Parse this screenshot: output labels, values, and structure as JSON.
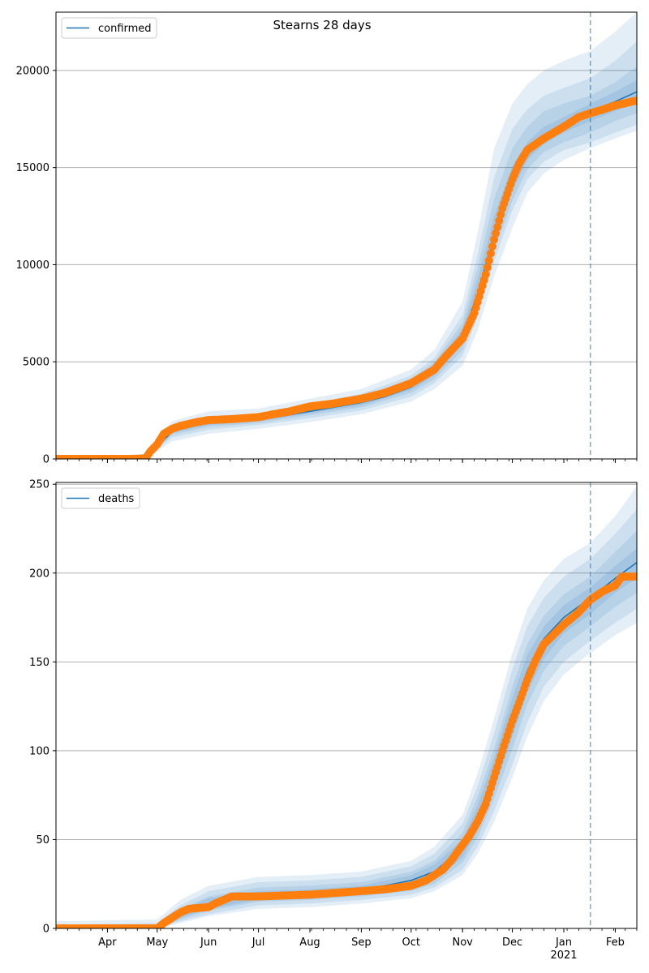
{
  "title": "Stearns 28 days",
  "colors": {
    "model_line": "#1f77b4",
    "observed": "#ff7f0e",
    "band": "#1f77b4",
    "grid": "#b0b0b0",
    "forecast_start": "#1f77b4"
  },
  "x_axis": {
    "range": [
      "2020-03-01",
      "2021-02-14"
    ],
    "month_labels": [
      {
        "date": "2020-04-01",
        "label": "Apr"
      },
      {
        "date": "2020-05-01",
        "label": "May"
      },
      {
        "date": "2020-06-01",
        "label": "Jun"
      },
      {
        "date": "2020-07-01",
        "label": "Jul"
      },
      {
        "date": "2020-08-01",
        "label": "Aug"
      },
      {
        "date": "2020-09-01",
        "label": "Sep"
      },
      {
        "date": "2020-10-01",
        "label": "Oct"
      },
      {
        "date": "2020-11-01",
        "label": "Nov"
      },
      {
        "date": "2020-12-01",
        "label": "Dec"
      },
      {
        "date": "2021-01-01",
        "label": "Jan"
      },
      {
        "date": "2021-02-01",
        "label": "Feb"
      }
    ],
    "year_label": {
      "date": "2021-01-01",
      "label": "2021"
    },
    "forecast_start": "2021-01-17"
  },
  "chart_data": [
    {
      "type": "line",
      "legend": "confirmed",
      "legend_position": "top-left",
      "grid": "horizontal",
      "ylim": [
        0,
        23000
      ],
      "yticks": [
        0,
        5000,
        10000,
        15000,
        20000
      ],
      "ytick_labels": [
        "0",
        "5000",
        "10000",
        "15000",
        "20000"
      ],
      "observed": [
        [
          "2020-03-01",
          0
        ],
        [
          "2020-04-15",
          0
        ],
        [
          "2020-04-24",
          30
        ],
        [
          "2020-04-27",
          400
        ],
        [
          "2020-05-01",
          750
        ],
        [
          "2020-05-05",
          1300
        ],
        [
          "2020-05-10",
          1550
        ],
        [
          "2020-05-15",
          1700
        ],
        [
          "2020-05-20",
          1800
        ],
        [
          "2020-05-25",
          1900
        ],
        [
          "2020-06-01",
          2000
        ],
        [
          "2020-06-15",
          2050
        ],
        [
          "2020-07-01",
          2150
        ],
        [
          "2020-07-10",
          2300
        ],
        [
          "2020-07-20",
          2450
        ],
        [
          "2020-08-01",
          2700
        ],
        [
          "2020-08-15",
          2850
        ],
        [
          "2020-09-01",
          3100
        ],
        [
          "2020-09-15",
          3400
        ],
        [
          "2020-10-01",
          3900
        ],
        [
          "2020-10-15",
          4600
        ],
        [
          "2020-10-22",
          5300
        ],
        [
          "2020-11-01",
          6200
        ],
        [
          "2020-11-08",
          7500
        ],
        [
          "2020-11-15",
          9500
        ],
        [
          "2020-11-20",
          11300
        ],
        [
          "2020-11-25",
          12900
        ],
        [
          "2020-12-01",
          14400
        ],
        [
          "2020-12-05",
          15200
        ],
        [
          "2020-12-10",
          15900
        ],
        [
          "2020-12-20",
          16500
        ],
        [
          "2021-01-01",
          17100
        ],
        [
          "2021-01-10",
          17600
        ],
        [
          "2021-01-17",
          17800
        ],
        [
          "2021-01-25",
          18000
        ],
        [
          "2021-02-01",
          18200
        ],
        [
          "2021-02-14",
          18450
        ]
      ],
      "model": [
        [
          "2020-03-01",
          0
        ],
        [
          "2020-04-24",
          30
        ],
        [
          "2020-05-01",
          650
        ],
        [
          "2020-05-10",
          1400
        ],
        [
          "2020-05-20",
          1700
        ],
        [
          "2020-06-01",
          1850
        ],
        [
          "2020-06-15",
          1950
        ],
        [
          "2020-07-01",
          2050
        ],
        [
          "2020-07-15",
          2200
        ],
        [
          "2020-08-01",
          2450
        ],
        [
          "2020-08-15",
          2650
        ],
        [
          "2020-09-01",
          2900
        ],
        [
          "2020-09-15",
          3200
        ],
        [
          "2020-10-01",
          3700
        ],
        [
          "2020-10-15",
          4500
        ],
        [
          "2020-11-01",
          6300
        ],
        [
          "2020-11-10",
          8500
        ],
        [
          "2020-11-20",
          11500
        ],
        [
          "2020-12-01",
          14300
        ],
        [
          "2020-12-10",
          15800
        ],
        [
          "2020-12-20",
          16600
        ],
        [
          "2021-01-01",
          17200
        ],
        [
          "2021-01-17",
          17900
        ],
        [
          "2021-02-01",
          18400
        ],
        [
          "2021-02-14",
          18900
        ]
      ],
      "bands": [
        {
          "dates": [
            "2020-03-01",
            "2020-04-24",
            "2020-05-10",
            "2020-06-01",
            "2020-07-01",
            "2020-08-01",
            "2020-09-01",
            "2020-10-01",
            "2020-10-15",
            "2020-11-01",
            "2020-11-10",
            "2020-11-20",
            "2020-12-01",
            "2020-12-10",
            "2020-12-20",
            "2021-01-01",
            "2021-01-17",
            "2021-02-01",
            "2021-02-14"
          ],
          "lower": [
            0,
            0,
            1100,
            1500,
            1750,
            2100,
            2500,
            3200,
            3900,
            5300,
            7300,
            10200,
            12800,
            14400,
            15300,
            15900,
            16300,
            16800,
            17200
          ],
          "upper": [
            0,
            60,
            1750,
            2200,
            2350,
            2850,
            3350,
            4300,
            5200,
            7400,
            10500,
            14500,
            17000,
            18000,
            18700,
            19100,
            19600,
            20500,
            21500
          ]
        },
        {
          "dates": [
            "2020-03-01",
            "2020-04-24",
            "2020-05-10",
            "2020-06-01",
            "2020-07-01",
            "2020-08-01",
            "2020-09-01",
            "2020-10-01",
            "2020-10-15",
            "2020-11-01",
            "2020-11-10",
            "2020-11-20",
            "2020-12-01",
            "2020-12-10",
            "2020-12-20",
            "2021-01-01",
            "2021-01-17",
            "2021-02-01",
            "2021-02-14"
          ],
          "lower": [
            0,
            0,
            900,
            1300,
            1550,
            1900,
            2300,
            2950,
            3600,
            4800,
            6600,
            9400,
            11900,
            13700,
            14700,
            15400,
            16000,
            16500,
            16900
          ],
          "upper": [
            0,
            90,
            1950,
            2450,
            2600,
            3100,
            3600,
            4600,
            5600,
            8100,
            11600,
            16000,
            18300,
            19300,
            20000,
            20500,
            21000,
            22000,
            23000
          ]
        },
        {
          "dates": [
            "2020-03-01",
            "2020-04-24",
            "2020-05-10",
            "2020-06-01",
            "2020-07-01",
            "2020-08-01",
            "2020-09-01",
            "2020-10-01",
            "2020-10-15",
            "2020-11-01",
            "2020-11-10",
            "2020-11-20",
            "2020-12-01",
            "2020-12-10",
            "2020-12-20",
            "2021-01-01",
            "2021-01-17",
            "2021-02-01",
            "2021-02-14"
          ],
          "lower": [
            0,
            0,
            1250,
            1650,
            1850,
            2250,
            2650,
            3400,
            4100,
            5600,
            7800,
            10700,
            13300,
            14900,
            15800,
            16300,
            16800,
            17400,
            17800
          ],
          "upper": [
            0,
            50,
            1600,
            2050,
            2250,
            2700,
            3200,
            4100,
            5000,
            7000,
            9800,
            13400,
            16000,
            17100,
            17900,
            18300,
            18700,
            19400,
            20200
          ]
        },
        {
          "dates": [
            "2020-03-01",
            "2020-04-24",
            "2020-05-10",
            "2020-06-01",
            "2020-07-01",
            "2020-08-01",
            "2020-09-01",
            "2020-10-01",
            "2020-10-15",
            "2020-11-01",
            "2020-11-10",
            "2020-11-20",
            "2020-12-01",
            "2020-12-10",
            "2020-12-20",
            "2021-01-01",
            "2021-01-17",
            "2021-02-01",
            "2021-02-14"
          ],
          "lower": [
            0,
            0,
            1350,
            1750,
            1950,
            2350,
            2750,
            3550,
            4300,
            5900,
            8200,
            11100,
            13800,
            15400,
            16200,
            16800,
            17400,
            17900,
            18300
          ],
          "upper": [
            0,
            40,
            1500,
            1950,
            2150,
            2600,
            3050,
            3900,
            4800,
            6700,
            9200,
            12500,
            15100,
            16300,
            17100,
            17600,
            18300,
            18900,
            19500
          ]
        }
      ]
    },
    {
      "type": "line",
      "legend": "deaths",
      "legend_position": "top-left",
      "grid": "horizontal",
      "ylim": [
        0,
        251
      ],
      "yticks": [
        0,
        50,
        100,
        150,
        200,
        250
      ],
      "ytick_labels": [
        "0",
        "50",
        "100",
        "150",
        "200",
        "250"
      ],
      "observed": [
        [
          "2020-03-01",
          0
        ],
        [
          "2020-05-01",
          0
        ],
        [
          "2020-05-05",
          3
        ],
        [
          "2020-05-10",
          6
        ],
        [
          "2020-05-15",
          9
        ],
        [
          "2020-05-20",
          11
        ],
        [
          "2020-06-01",
          12
        ],
        [
          "2020-06-05",
          14
        ],
        [
          "2020-06-10",
          16
        ],
        [
          "2020-06-15",
          18
        ],
        [
          "2020-07-01",
          18
        ],
        [
          "2020-08-01",
          19
        ],
        [
          "2020-09-01",
          21
        ],
        [
          "2020-09-15",
          22
        ],
        [
          "2020-10-01",
          24
        ],
        [
          "2020-10-10",
          27
        ],
        [
          "2020-10-20",
          33
        ],
        [
          "2020-10-25",
          38
        ],
        [
          "2020-11-01",
          47
        ],
        [
          "2020-11-05",
          52
        ],
        [
          "2020-11-10",
          60
        ],
        [
          "2020-11-15",
          70
        ],
        [
          "2020-11-20",
          85
        ],
        [
          "2020-11-25",
          100
        ],
        [
          "2020-12-01",
          117
        ],
        [
          "2020-12-05",
          127
        ],
        [
          "2020-12-10",
          140
        ],
        [
          "2020-12-15",
          151
        ],
        [
          "2020-12-20",
          160
        ],
        [
          "2021-01-01",
          171
        ],
        [
          "2021-01-10",
          178
        ],
        [
          "2021-01-17",
          185
        ],
        [
          "2021-01-25",
          190
        ],
        [
          "2021-02-01",
          193
        ],
        [
          "2021-02-05",
          198
        ],
        [
          "2021-02-14",
          198
        ]
      ],
      "model": [
        [
          "2020-03-01",
          0
        ],
        [
          "2020-05-01",
          0
        ],
        [
          "2020-05-15",
          8
        ],
        [
          "2020-06-01",
          14
        ],
        [
          "2020-06-15",
          18
        ],
        [
          "2020-07-01",
          19
        ],
        [
          "2020-08-01",
          20
        ],
        [
          "2020-09-01",
          22
        ],
        [
          "2020-09-15",
          24
        ],
        [
          "2020-10-01",
          27
        ],
        [
          "2020-10-15",
          32
        ],
        [
          "2020-11-01",
          45
        ],
        [
          "2020-11-10",
          62
        ],
        [
          "2020-11-20",
          88
        ],
        [
          "2020-12-01",
          120
        ],
        [
          "2020-12-10",
          145
        ],
        [
          "2020-12-20",
          163
        ],
        [
          "2021-01-01",
          175
        ],
        [
          "2021-01-17",
          186
        ],
        [
          "2021-02-01",
          197
        ],
        [
          "2021-02-14",
          206
        ]
      ],
      "bands": [
        {
          "dates": [
            "2020-03-01",
            "2020-05-01",
            "2020-05-15",
            "2020-06-01",
            "2020-07-01",
            "2020-08-01",
            "2020-09-01",
            "2020-10-01",
            "2020-10-15",
            "2020-11-01",
            "2020-11-10",
            "2020-11-20",
            "2020-12-01",
            "2020-12-10",
            "2020-12-20",
            "2021-01-01",
            "2021-01-17",
            "2021-02-01",
            "2021-02-14"
          ],
          "lower": [
            0,
            0,
            4,
            8,
            13,
            14,
            16,
            19,
            23,
            33,
            46,
            66,
            92,
            116,
            136,
            150,
            162,
            172,
            180
          ],
          "upper": [
            2,
            3,
            13,
            21,
            26,
            27,
            29,
            35,
            42,
            59,
            80,
            110,
            146,
            170,
            186,
            198,
            208,
            222,
            236
          ]
        },
        {
          "dates": [
            "2020-03-01",
            "2020-05-01",
            "2020-05-15",
            "2020-06-01",
            "2020-07-01",
            "2020-08-01",
            "2020-09-01",
            "2020-10-01",
            "2020-10-15",
            "2020-11-01",
            "2020-11-10",
            "2020-11-20",
            "2020-12-01",
            "2020-12-10",
            "2020-12-20",
            "2021-01-01",
            "2021-01-17",
            "2021-02-01",
            "2021-02-14"
          ],
          "lower": [
            0,
            0,
            3,
            7,
            11,
            12,
            14,
            17,
            21,
            30,
            42,
            60,
            85,
            108,
            128,
            143,
            155,
            165,
            172
          ],
          "upper": [
            4,
            5,
            16,
            24,
            29,
            30,
            32,
            38,
            46,
            64,
            87,
            118,
            155,
            180,
            196,
            208,
            217,
            232,
            249
          ]
        },
        {
          "dates": [
            "2020-03-01",
            "2020-05-01",
            "2020-05-15",
            "2020-06-01",
            "2020-07-01",
            "2020-08-01",
            "2020-09-01",
            "2020-10-01",
            "2020-10-15",
            "2020-11-01",
            "2020-11-10",
            "2020-11-20",
            "2020-12-01",
            "2020-12-10",
            "2020-12-20",
            "2021-01-01",
            "2021-01-17",
            "2021-02-01",
            "2021-02-14"
          ],
          "lower": [
            0,
            0,
            5,
            10,
            15,
            16,
            18,
            21,
            25,
            37,
            51,
            73,
            101,
            126,
            145,
            159,
            170,
            181,
            189
          ],
          "upper": [
            1,
            2,
            11,
            18,
            23,
            24,
            26,
            32,
            38,
            54,
            74,
            101,
            136,
            160,
            176,
            188,
            198,
            212,
            224
          ]
        },
        {
          "dates": [
            "2020-03-01",
            "2020-05-01",
            "2020-05-15",
            "2020-06-01",
            "2020-07-01",
            "2020-08-01",
            "2020-09-01",
            "2020-10-01",
            "2020-10-15",
            "2020-11-01",
            "2020-11-10",
            "2020-11-20",
            "2020-12-01",
            "2020-12-10",
            "2020-12-20",
            "2021-01-01",
            "2021-01-17",
            "2021-02-01",
            "2021-02-14"
          ],
          "lower": [
            0,
            0,
            6,
            11,
            16,
            17,
            19,
            23,
            27,
            40,
            55,
            78,
            108,
            133,
            152,
            166,
            177,
            189,
            197
          ],
          "upper": [
            1,
            1,
            10,
            17,
            21,
            22,
            24,
            30,
            36,
            50,
            69,
            96,
            130,
            154,
            170,
            182,
            192,
            204,
            214
          ]
        }
      ]
    }
  ]
}
